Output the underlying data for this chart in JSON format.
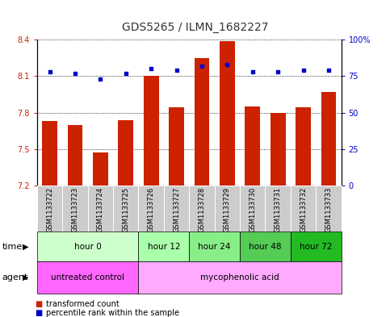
{
  "title": "GDS5265 / ILMN_1682227",
  "samples": [
    "GSM1133722",
    "GSM1133723",
    "GSM1133724",
    "GSM1133725",
    "GSM1133726",
    "GSM1133727",
    "GSM1133728",
    "GSM1133729",
    "GSM1133730",
    "GSM1133731",
    "GSM1133732",
    "GSM1133733"
  ],
  "bar_values": [
    7.73,
    7.7,
    7.47,
    7.74,
    8.1,
    7.84,
    8.25,
    8.39,
    7.85,
    7.8,
    7.84,
    7.97
  ],
  "dot_values_pct": [
    78,
    77,
    73,
    77,
    80,
    79,
    82,
    83,
    78,
    78,
    79,
    79
  ],
  "ylim_left": [
    7.2,
    8.4
  ],
  "ylim_right": [
    0,
    100
  ],
  "yticks_left": [
    7.2,
    7.5,
    7.8,
    8.1,
    8.4
  ],
  "yticks_right": [
    0,
    25,
    50,
    75,
    100
  ],
  "ytick_labels_left": [
    "7.2",
    "7.5",
    "7.8",
    "8.1",
    "8.4"
  ],
  "ytick_labels_right": [
    "0",
    "25",
    "50",
    "75",
    "100%"
  ],
  "bar_color": "#CC2200",
  "dot_color": "#0000CC",
  "bar_bottom": 7.2,
  "time_groups": [
    {
      "label": "hour 0",
      "start": 0,
      "end": 3,
      "color": "#ccffcc"
    },
    {
      "label": "hour 12",
      "start": 4,
      "end": 5,
      "color": "#aaffaa"
    },
    {
      "label": "hour 24",
      "start": 6,
      "end": 7,
      "color": "#88ee88"
    },
    {
      "label": "hour 48",
      "start": 8,
      "end": 9,
      "color": "#55cc55"
    },
    {
      "label": "hour 72",
      "start": 10,
      "end": 11,
      "color": "#22bb22"
    }
  ],
  "agent_groups": [
    {
      "label": "untreated control",
      "start": 0,
      "end": 3,
      "color": "#ff66ff"
    },
    {
      "label": "mycophenolic acid",
      "start": 4,
      "end": 11,
      "color": "#ffaaff"
    }
  ],
  "legend_bar_label": "transformed count",
  "legend_dot_label": "percentile rank within the sample",
  "time_label": "time",
  "agent_label": "agent",
  "sample_bg_color": "#cccccc",
  "bg_color": "#ffffff",
  "title_fontsize": 10,
  "tick_fontsize": 7,
  "sample_fontsize": 6,
  "row_fontsize": 7.5,
  "legend_fontsize": 7
}
